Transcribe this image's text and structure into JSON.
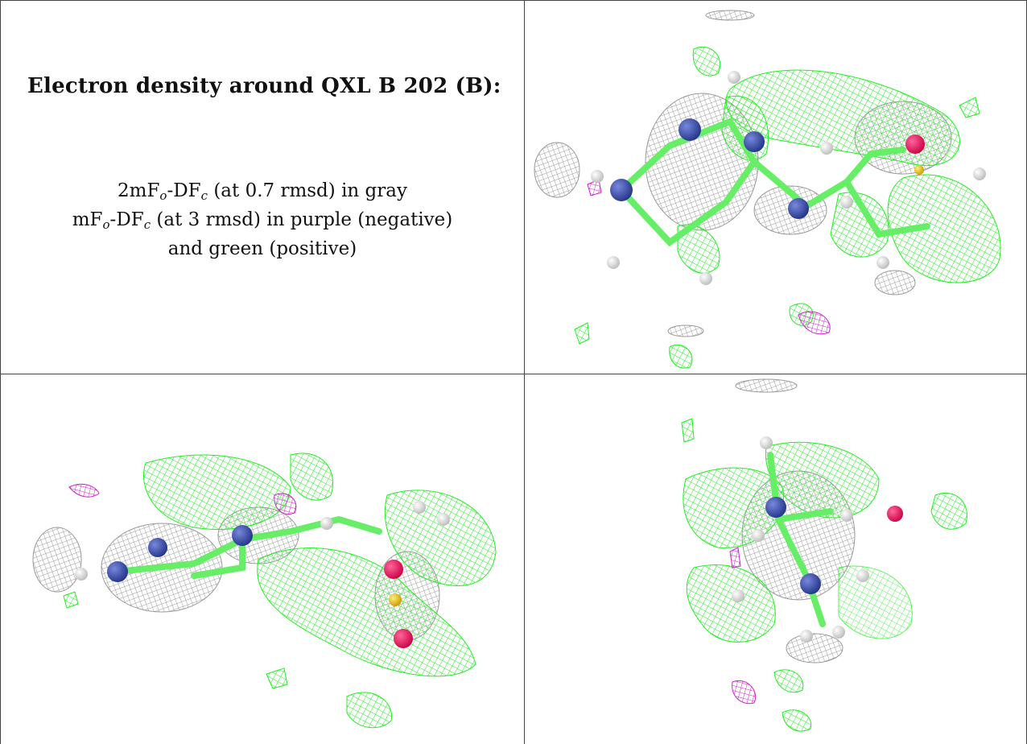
{
  "caption": {
    "title": "Electron density around QXL B 202 (B):",
    "line1": {
      "prefix": "2mF",
      "sub1": "o",
      "mid": "-DF",
      "sub2": "c",
      "suffix": " (at 0.7 rmsd) in gray"
    },
    "line2": {
      "prefix": "mF",
      "sub1": "o",
      "mid": "-DF",
      "sub2": "c",
      "suffix": " (at 3 rmsd) in purple (negative)"
    },
    "line3": "and green (positive)"
  },
  "colors": {
    "positive_density": "#22ee22",
    "negative_density": "#cc22cc",
    "twofofc_density": "#a8a8a8",
    "carbon": "#66ee66",
    "nitrogen": "#3344aa",
    "oxygen": "#ee1166",
    "sulfur": "#eecc22",
    "hydrogen": "#e8e8e8"
  }
}
